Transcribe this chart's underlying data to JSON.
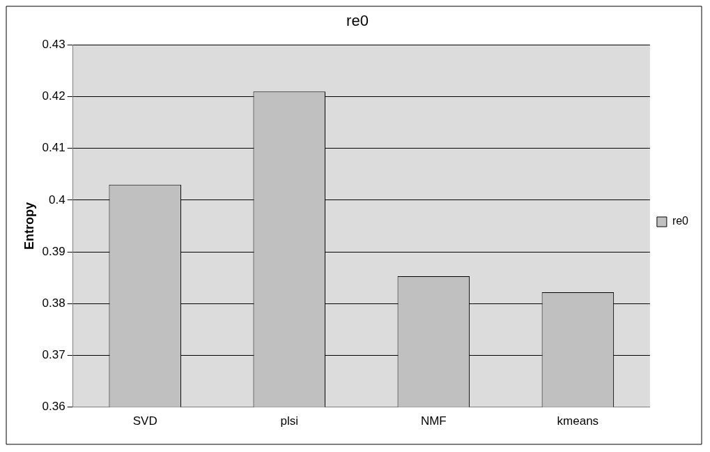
{
  "chart_data": {
    "type": "bar",
    "title": "re0",
    "ylabel": "Entropy",
    "categories": [
      "SVD",
      "plsi",
      "NMF",
      "kmeans"
    ],
    "series": [
      {
        "name": "re0",
        "color": "#c0c0c0",
        "values": [
          0.403,
          0.421,
          0.3853,
          0.3822
        ]
      }
    ],
    "ylim": [
      0.36,
      0.43
    ],
    "yticks": [
      0.36,
      0.37,
      0.38,
      0.39,
      0.4,
      0.41,
      0.42,
      0.43
    ],
    "grid": "y",
    "legend": "right"
  }
}
